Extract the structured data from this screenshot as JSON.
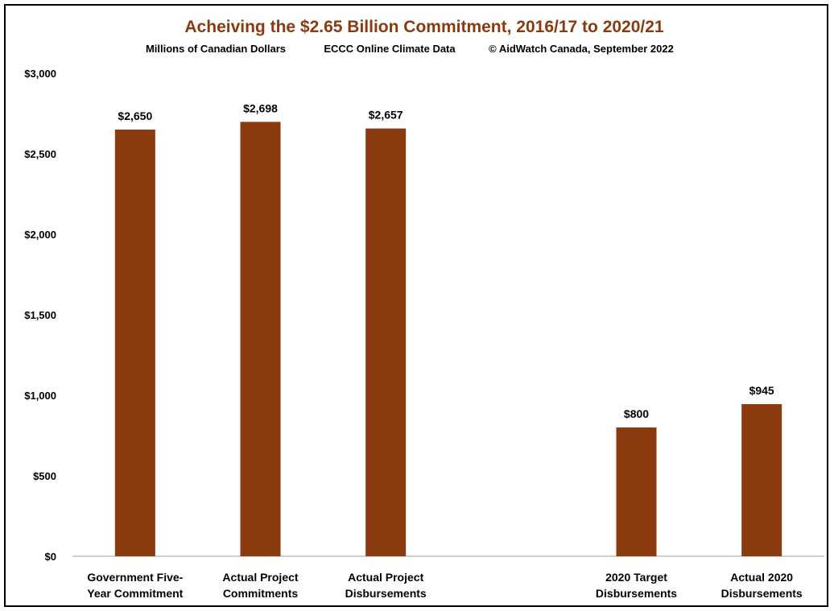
{
  "chart_data": {
    "type": "bar",
    "title": "Acheiving the $2.65 Billion Commitment, 2016/17 to 2020/21",
    "subtitle_parts": [
      "Millions of Canadian Dollars",
      "ECCC Online Climate Data",
      "© AidWatch Canada, September 2022"
    ],
    "categories": [
      [
        "Government Five-",
        "Year Commitment"
      ],
      [
        "Actual Project",
        "Commitments"
      ],
      [
        "Actual Project",
        "Disbursements"
      ],
      [
        "",
        ""
      ],
      [
        "2020 Target",
        "Disbursements"
      ],
      [
        "Actual 2020",
        "Disbursements"
      ]
    ],
    "values": [
      2650,
      2698,
      2657,
      null,
      800,
      945
    ],
    "data_labels": [
      "$2,650",
      "$2,698",
      "$2,657",
      "",
      "$800",
      "$945"
    ],
    "ylim": [
      0,
      3000
    ],
    "yticks": [
      0,
      500,
      1000,
      1500,
      2000,
      2500,
      3000
    ],
    "ytick_labels": [
      "$0",
      "$500",
      "$1,000",
      "$1,500",
      "$2,000",
      "$2,500",
      "$3,000"
    ],
    "grid": false,
    "legend": "none",
    "xlabel": "",
    "ylabel": "",
    "colors": {
      "bar": "#8b3a0f",
      "title": "#8b3a0f",
      "axis": "#bfbfbf",
      "text": "#000000"
    }
  }
}
